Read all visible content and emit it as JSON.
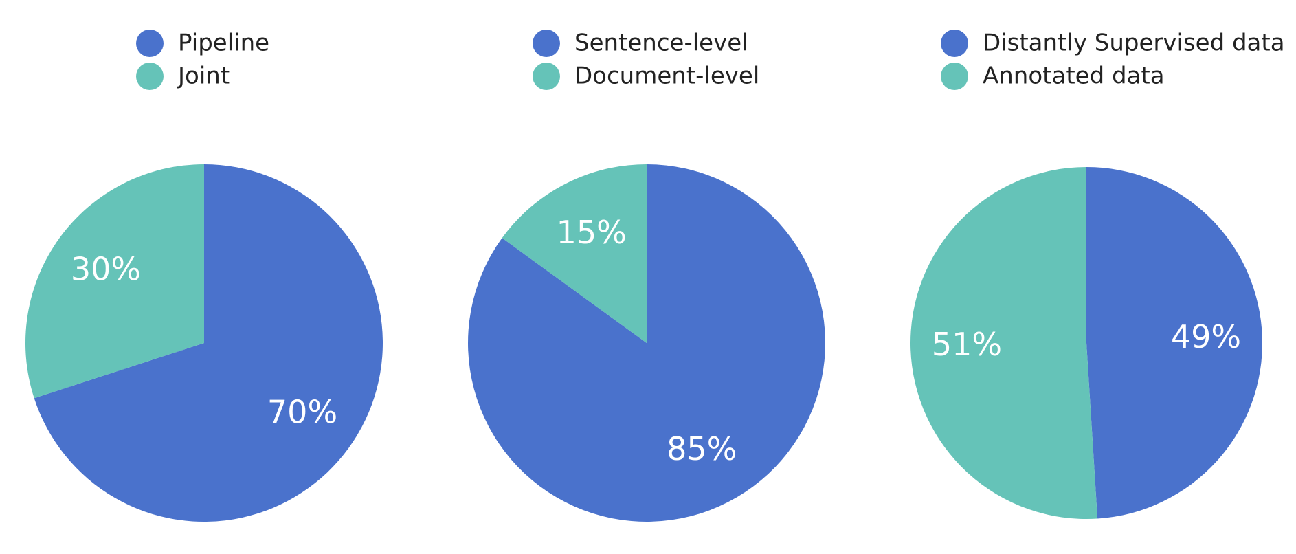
{
  "chart_data": [
    {
      "type": "pie",
      "categories": [
        "Pipeline",
        "Joint"
      ],
      "values": [
        70,
        30
      ],
      "value_labels": [
        "70%",
        "30%"
      ],
      "colors": [
        "#4a72cc",
        "#65c3b8"
      ]
    },
    {
      "type": "pie",
      "categories": [
        "Sentence-level",
        "Document-level"
      ],
      "values": [
        85,
        15
      ],
      "value_labels": [
        "85%",
        "15%"
      ],
      "colors": [
        "#4a72cc",
        "#65c3b8"
      ]
    },
    {
      "type": "pie",
      "categories": [
        "Distantly Supervised data",
        "Annotated data"
      ],
      "values": [
        49,
        51
      ],
      "value_labels": [
        "49%",
        "51%"
      ],
      "colors": [
        "#4a72cc",
        "#65c3b8"
      ]
    }
  ]
}
